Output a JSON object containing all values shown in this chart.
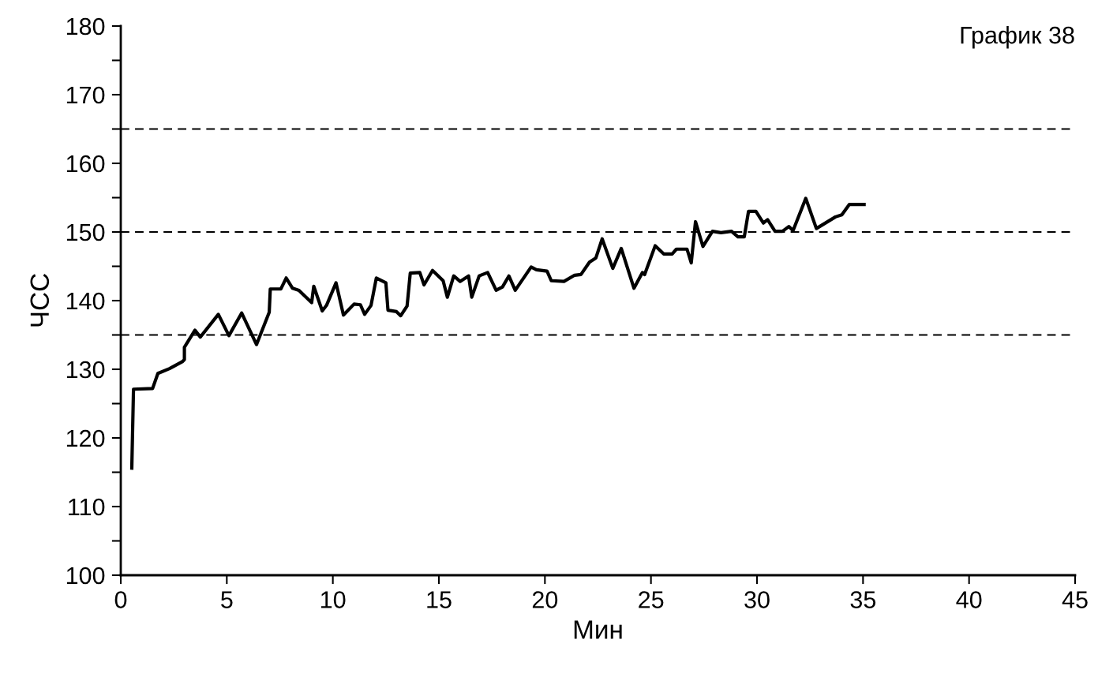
{
  "chart_data": {
    "type": "line",
    "title": "График 38",
    "xlabel": "Мин",
    "ylabel": "ЧСС",
    "xlim": [
      0,
      45
    ],
    "xticks": [
      0,
      5,
      10,
      15,
      20,
      25,
      30,
      35,
      40,
      45
    ],
    "ylim": [
      100,
      180
    ],
    "yticks": [
      100,
      {
        "value": 105,
        "label": null
      },
      110,
      {
        "value": 115,
        "label": null
      },
      120,
      {
        "value": 125,
        "label": null
      },
      130,
      {
        "value": 135,
        "label": null
      },
      140,
      {
        "value": 145,
        "label": null
      },
      150,
      {
        "value": 155,
        "label": null
      },
      160,
      {
        "value": 165,
        "label": null
      },
      170,
      {
        "value": 175,
        "label": null
      },
      180
    ],
    "grid": false,
    "legend": false,
    "marker": "none",
    "line_style": "solid",
    "ref_lines": [
      {
        "axis": "y",
        "value": 135,
        "color": "#000000",
        "line_style": "dashed"
      },
      {
        "axis": "y",
        "value": 150,
        "color": "#000000",
        "line_style": "dashed"
      },
      {
        "axis": "y",
        "value": 165,
        "color": "#000000",
        "line_style": "dashed"
      }
    ],
    "series": [
      {
        "color": "#000000",
        "x": [
          0.52,
          0.6,
          1.5,
          1.75,
          2.3,
          2.9,
          3.0,
          3.0,
          3.5,
          3.75,
          4.6,
          5.1,
          5.7,
          6.4,
          7.0,
          7.05,
          7.55,
          7.8,
          8.1,
          8.4,
          9.0,
          9.1,
          9.5,
          9.7,
          10.15,
          10.5,
          11.0,
          11.3,
          11.5,
          11.8,
          12.05,
          12.5,
          12.6,
          13.0,
          13.2,
          13.5,
          13.65,
          14.1,
          14.3,
          14.7,
          15.2,
          15.4,
          15.7,
          16.0,
          16.4,
          16.55,
          16.9,
          17.3,
          17.7,
          18.0,
          18.3,
          18.6,
          19.35,
          19.6,
          20.1,
          20.3,
          20.9,
          21.4,
          21.7,
          22.1,
          22.4,
          22.7,
          23.2,
          23.6,
          24.2,
          24.6,
          24.7,
          25.2,
          25.6,
          26.0,
          26.2,
          26.7,
          26.9,
          27.1,
          27.45,
          27.9,
          28.3,
          28.8,
          29.1,
          29.4,
          29.6,
          29.95,
          30.3,
          30.5,
          30.85,
          31.2,
          31.5,
          31.7,
          32.3,
          32.8,
          33.7,
          34.0,
          34.35,
          35.05
        ],
        "values": [
          115.6,
          127.1,
          127.2,
          129.4,
          130.1,
          131.1,
          131.4,
          133.2,
          135.7,
          134.7,
          138.0,
          134.9,
          138.2,
          133.6,
          138.3,
          141.7,
          141.7,
          143.3,
          141.8,
          141.5,
          139.7,
          142.1,
          138.5,
          139.3,
          142.6,
          137.9,
          139.5,
          139.4,
          138.0,
          139.3,
          143.3,
          142.6,
          138.6,
          138.4,
          137.8,
          139.2,
          144.0,
          144.1,
          142.3,
          144.4,
          142.9,
          140.5,
          143.6,
          142.8,
          143.6,
          140.5,
          143.6,
          144.1,
          141.5,
          142.0,
          143.6,
          141.5,
          144.9,
          144.5,
          144.3,
          142.9,
          142.8,
          143.7,
          143.8,
          145.6,
          146.2,
          149.0,
          144.7,
          147.6,
          141.8,
          144.1,
          143.8,
          148.0,
          146.8,
          146.8,
          147.5,
          147.5,
          145.5,
          151.5,
          147.9,
          150.1,
          149.9,
          150.1,
          149.3,
          149.3,
          153.0,
          153.0,
          151.3,
          151.8,
          150.1,
          150.1,
          150.8,
          150.2,
          154.9,
          150.5,
          152.2,
          152.5,
          154.0,
          154.0
        ]
      }
    ]
  }
}
